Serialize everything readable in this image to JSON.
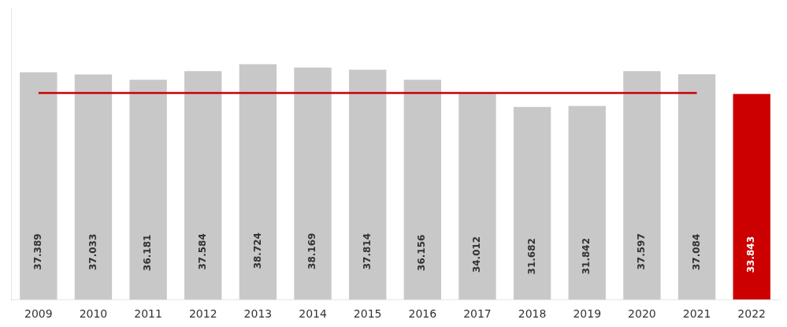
{
  "chart_data": {
    "type": "bar",
    "categories": [
      "2009",
      "2010",
      "2011",
      "2012",
      "2013",
      "2014",
      "2015",
      "2016",
      "2017",
      "2018",
      "2019",
      "2020",
      "2021",
      "2022"
    ],
    "series": [
      {
        "type": "bar",
        "values": [
          37389,
          37033,
          36181,
          37584,
          38724,
          38169,
          37814,
          36156,
          34012,
          31682,
          31842,
          37597,
          37084,
          33843
        ],
        "value_labels": [
          "37.389",
          "37.033",
          "36.181",
          "37.584",
          "38.724",
          "38.169",
          "37.814",
          "36.156",
          "34.012",
          "31.682",
          "31.842",
          "37.597",
          "37.084",
          "33.843"
        ],
        "colors": [
          "#c8c8c8",
          "#c8c8c8",
          "#c8c8c8",
          "#c8c8c8",
          "#c8c8c8",
          "#c8c8c8",
          "#c8c8c8",
          "#c8c8c8",
          "#c8c8c8",
          "#c8c8c8",
          "#c8c8c8",
          "#c8c8c8",
          "#c8c8c8",
          "#cc0000"
        ]
      },
      {
        "type": "line",
        "values": [
          34012,
          34012,
          34012,
          34012,
          34012,
          34012,
          34012,
          34012,
          34012,
          34012,
          34012,
          34012,
          34012,
          null
        ],
        "color": "#cc0000"
      }
    ],
    "ylim": [
      0,
      48000
    ],
    "data_labels": true,
    "tick_labels": "x",
    "grid": false
  }
}
